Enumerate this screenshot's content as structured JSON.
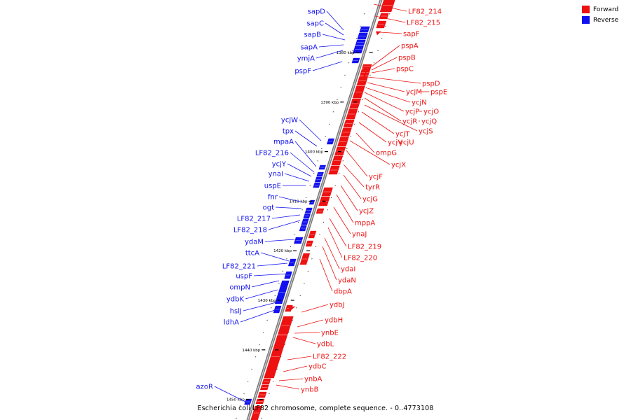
{
  "caption": "Escherichia coli LF82 chromosome, complete sequence. - 0..4773108",
  "legend": [
    {
      "label": "Forward",
      "color": "#ee1111"
    },
    {
      "label": "Reverse",
      "color": "#1111ee"
    }
  ],
  "colors": {
    "forward": "#ee1111",
    "reverse": "#1111ee",
    "backbone": "#888888",
    "tick": "#000000"
  },
  "scale_ticks": [
    {
      "label": "1380 kbp",
      "kbp": 1380
    },
    {
      "label": "1390 kbp",
      "kbp": 1390
    },
    {
      "label": "1400 kbp",
      "kbp": 1400
    },
    {
      "label": "1410 kbp",
      "kbp": 1410
    },
    {
      "label": "1420 kbp",
      "kbp": 1420
    },
    {
      "label": "1430 kbp",
      "kbp": 1430
    },
    {
      "label": "1440 kbp",
      "kbp": 1440
    },
    {
      "label": "1450 kbp",
      "kbp": 1450
    }
  ],
  "reverse_genes": [
    "sapD",
    "sapC",
    "sapB",
    "sapA",
    "ymjA",
    "pspF",
    "ycjW",
    "tpx",
    "mpaA",
    "LF82_216",
    "ycjY",
    "ynaI",
    "uspE",
    "fnr",
    "ogt",
    "LF82_217",
    "LF82_218",
    "ydaM",
    "ttcA",
    "LF82_221",
    "uspF",
    "ompN",
    "ydbK",
    "hslJ",
    "ldhA",
    "azoR"
  ],
  "forward_genes": [
    "LF82_214",
    "LF82_215",
    "sapF",
    "pspA",
    "pspB",
    "pspC",
    "pspD",
    "ycjM",
    "pspE",
    "ycjN",
    "ycjP",
    "ycjO",
    "ycjR",
    "ycjQ",
    "ycjS",
    "ycjT",
    "ycjV",
    "ycjU",
    "ompG",
    "ycjX",
    "ycjF",
    "tyrR",
    "ycjG",
    "ycjZ",
    "mppA",
    "ynaJ",
    "LF82_219",
    "LF82_220",
    "ydaI",
    "ydaN",
    "dbpA",
    "ydbJ",
    "ydbH",
    "ynbE",
    "ydbL",
    "LF82_222",
    "ydbC",
    "ynbA",
    "ynbB"
  ]
}
